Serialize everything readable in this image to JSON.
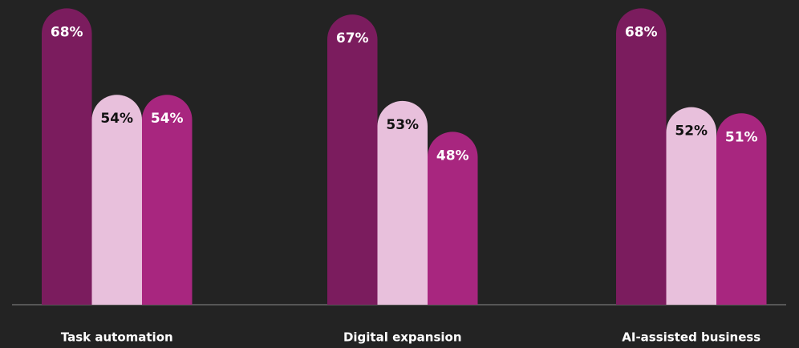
{
  "chart_data": {
    "type": "bar",
    "categories": [
      "Task automation",
      "Digital expansion",
      "AI-assisted business"
    ],
    "series": [
      {
        "color": "#7b1c5e",
        "values": [
          68,
          67,
          68
        ],
        "value_labels": [
          "68%",
          "67%",
          "68%"
        ]
      },
      {
        "color": "#e8c0dc",
        "values": [
          54,
          53,
          52
        ],
        "value_labels": [
          "54%",
          "53%",
          "52%"
        ]
      },
      {
        "color": "#a8267f",
        "values": [
          54,
          48,
          51
        ],
        "value_labels": [
          "54%",
          "48%",
          "51%"
        ]
      }
    ],
    "ylim": [
      20,
      70
    ]
  }
}
